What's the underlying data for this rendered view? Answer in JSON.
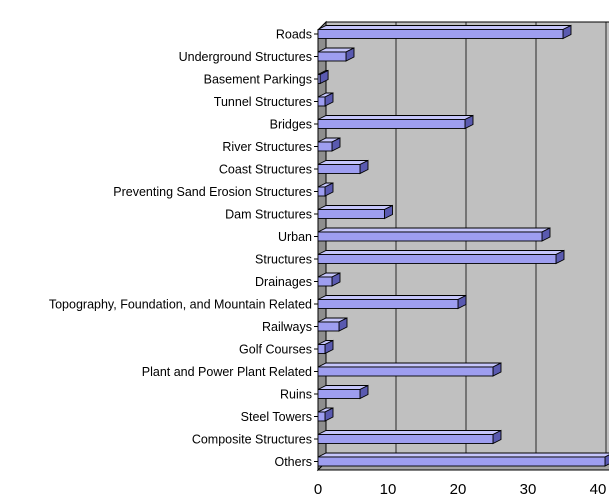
{
  "colors": {
    "bar_front": "#9e9ef0",
    "bar_top": "#c6c6fb",
    "bar_side": "#5a5ab0",
    "bar_outline": "#000000",
    "plot_wall": "#c0c0c0",
    "plot_wall_side": "#8e8e8e",
    "floor": "#a4a4a4",
    "gridline": "#000000"
  },
  "chart_data": {
    "type": "bar",
    "orientation": "horizontal",
    "three_d": true,
    "grid": true,
    "legend": "none",
    "title": "",
    "xlabel": "",
    "ylabel": "",
    "xlim": [
      0,
      40
    ],
    "x_ticks": [
      "0",
      "10",
      "20",
      "30",
      "40"
    ],
    "categories": [
      "Roads",
      "Underground Structures",
      "Basement Parkings",
      "Tunnel Structures",
      "Bridges",
      "River Structures",
      "Coast Structures",
      "Preventing Sand Erosion Structures",
      "Dam Structures",
      "Urban",
      "Structures",
      "Drainages",
      "Topography, Foundation, and Mountain Related",
      "Railways",
      "Golf Courses",
      "Plant and Power Plant Related",
      "Ruins",
      "Steel Towers",
      "Composite Structures",
      "Others"
    ],
    "values": [
      35,
      4,
      0.3,
      1,
      21,
      2,
      6,
      1,
      9.5,
      32,
      34,
      2,
      20,
      3,
      1,
      25,
      6,
      1,
      25,
      41
    ]
  }
}
